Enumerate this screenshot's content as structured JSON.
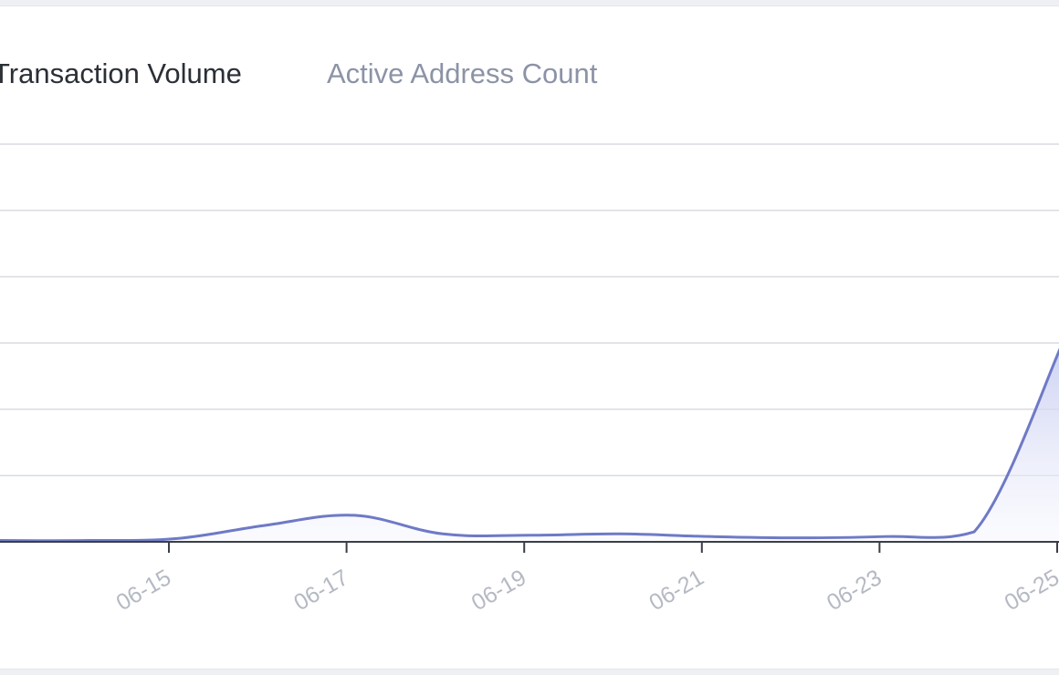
{
  "tabs": [
    {
      "label": "Transaction Volume",
      "active": true
    },
    {
      "label": "Active Address Count",
      "active": false
    }
  ],
  "colors": {
    "line": "#6e7ac6",
    "area_top": "#c5cbf0",
    "area_bottom": "#f4f5fd",
    "grid": "#d9dbe1",
    "axis": "#3a3f47",
    "tick_label": "#b5b9c3",
    "tab_active": "#2b2f36",
    "tab_inactive": "#8c93a6"
  },
  "chart_data": {
    "type": "area",
    "title": "",
    "xlabel": "",
    "ylabel": "",
    "grid": true,
    "legend": "none",
    "x_tick_labels": [
      "06-15",
      "06-17",
      "06-19",
      "06-21",
      "06-23",
      "06-25"
    ],
    "ylim": [
      0,
      6
    ],
    "series": [
      {
        "x": [
          "06-13",
          "06-14",
          "06-15",
          "06-16",
          "06-17",
          "06-18",
          "06-19",
          "06-20",
          "06-21",
          "06-22",
          "06-23",
          "06-24",
          "06-25"
        ],
        "values": [
          0.02,
          0.02,
          0.05,
          0.25,
          0.4,
          0.12,
          0.1,
          0.12,
          0.08,
          0.06,
          0.08,
          0.15,
          3.0
        ]
      }
    ]
  }
}
